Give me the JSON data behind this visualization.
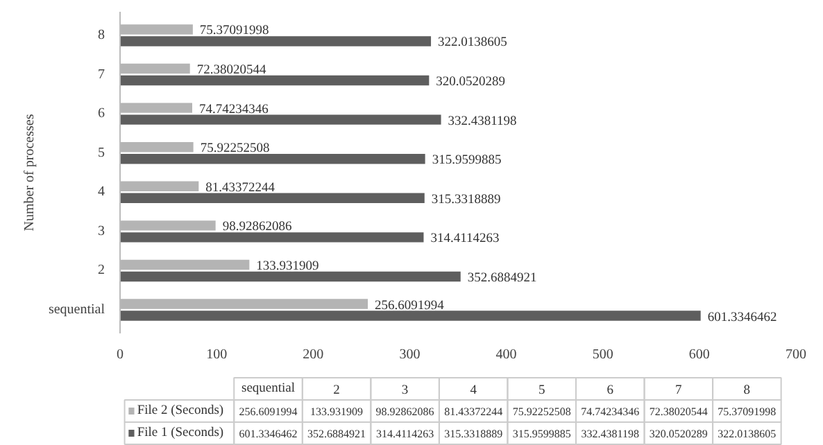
{
  "chart_data": {
    "type": "bar",
    "orientation": "horizontal",
    "ylabel": "Number of processes",
    "categories": [
      "8",
      "7",
      "6",
      "5",
      "4",
      "3",
      "2",
      "sequential"
    ],
    "series": [
      {
        "name": "File 2 (Seconds)",
        "color": "#b4b4b4",
        "values": [
          75.37091998,
          72.38020544,
          74.74234346,
          75.92252508,
          81.43372244,
          98.92862086,
          133.931909,
          256.6091994
        ]
      },
      {
        "name": "File 1 (Seconds)",
        "color": "#5e5e5e",
        "values": [
          322.0138605,
          320.0520289,
          332.4381198,
          315.9599885,
          315.3318889,
          314.4114263,
          352.6884921,
          601.3346462
        ]
      }
    ],
    "annotations": [
      "256.6091994",
      "133.931909",
      "98.92862086",
      "81.43372244",
      "75.92252508",
      "74.74234346",
      "72.38020544",
      "75.37091998",
      "601.3346462",
      "352.6884921",
      "314.4114263",
      "315.3318889",
      "315.9599885",
      "332.4381198",
      "320.0520289",
      "322.0138605"
    ],
    "xlim": [
      0,
      700
    ],
    "xticks": [
      0,
      100,
      200,
      300,
      400,
      500,
      600,
      700
    ],
    "grid": false,
    "data_labels": true,
    "legend": "bottom"
  }
}
